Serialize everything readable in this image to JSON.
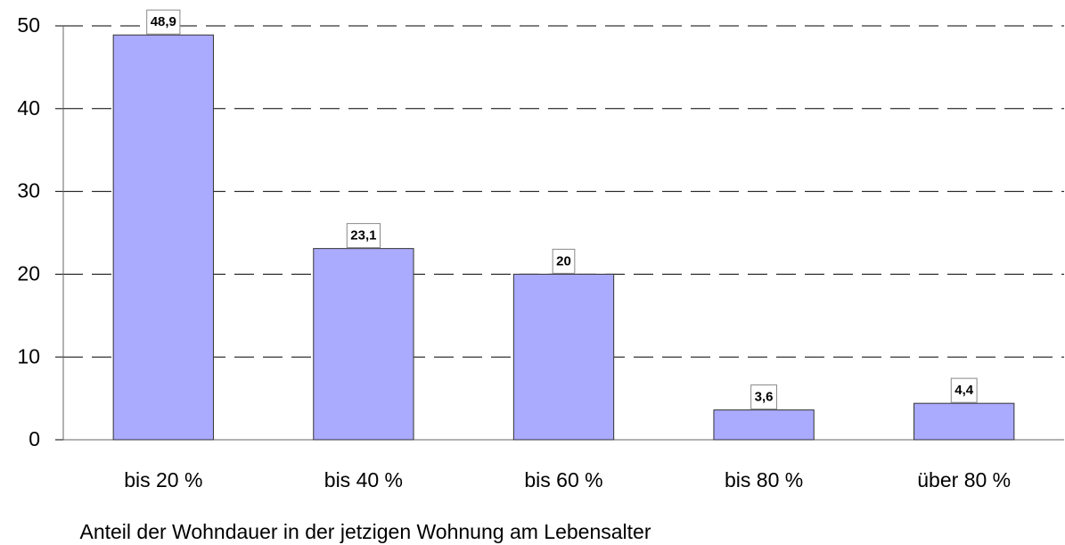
{
  "chart_data": {
    "type": "bar",
    "x_label": "Anteil der Wohndauer in der jetzigen Wohnung am Lebensalter",
    "categories": [
      "bis 20 %",
      "bis 40 %",
      "bis 60 %",
      "bis 80 %",
      "über 80 %"
    ],
    "values": [
      48.9,
      23.1,
      20,
      3.6,
      4.4
    ],
    "value_labels": [
      "48,9",
      "23,1",
      "20",
      "3,6",
      "4,4"
    ],
    "color": "#aaaaff",
    "ylim": [
      0,
      50
    ],
    "yticks": [
      0,
      10,
      20,
      30,
      40,
      50
    ],
    "grid": true
  }
}
